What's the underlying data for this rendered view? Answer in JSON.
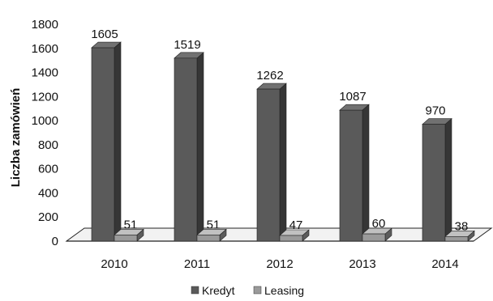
{
  "chart_data": {
    "type": "bar",
    "categories": [
      "2010",
      "2011",
      "2012",
      "2013",
      "2014"
    ],
    "series": [
      {
        "name": "Kredyt",
        "values": [
          1605,
          1519,
          1262,
          1087,
          970
        ],
        "color": "#5a5a5a",
        "labels": [
          "1605",
          "1519",
          "1262",
          "1087",
          "970"
        ]
      },
      {
        "name": "Leasing",
        "values": [
          51,
          51,
          47,
          60,
          38
        ],
        "color": "#9a9a9a",
        "labels": [
          "51",
          "51",
          "47",
          "60",
          "38"
        ]
      }
    ],
    "ylabel": "Liczba zamówień",
    "ylim": [
      0,
      1800
    ],
    "yticks": [
      "0",
      "200",
      "400",
      "600",
      "800",
      "1000",
      "1200",
      "1400",
      "1600",
      "1800"
    ],
    "grid": false,
    "legend_position": "bottom"
  }
}
